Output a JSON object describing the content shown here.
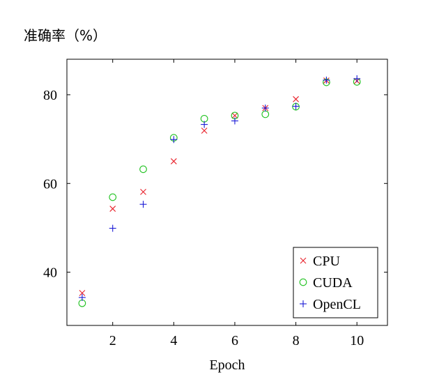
{
  "chart_data": {
    "type": "scatter",
    "ylabel": "准确率（%）",
    "xlabel": "Epoch",
    "xlim": [
      0.5,
      11.0
    ],
    "ylim": [
      28,
      88
    ],
    "xticks": [
      2,
      4,
      6,
      8,
      10
    ],
    "yticks": [
      40,
      60,
      80
    ],
    "grid": false,
    "legend_position": "bottom-right",
    "series": [
      {
        "name": "CPU",
        "marker": "x",
        "color": "#e8202a",
        "x": [
          1,
          2,
          3,
          4,
          5,
          6,
          7,
          8,
          9,
          10
        ],
        "y": [
          35.3,
          54.3,
          58.1,
          65.0,
          71.9,
          75.3,
          77.0,
          79.0,
          83.2,
          83.1
        ]
      },
      {
        "name": "CUDA",
        "marker": "circle",
        "color": "#1fc21f",
        "x": [
          1,
          2,
          3,
          4,
          5,
          6,
          7,
          8,
          9,
          10
        ],
        "y": [
          33.0,
          56.9,
          63.2,
          70.3,
          74.6,
          75.3,
          75.6,
          77.3,
          82.8,
          82.9
        ]
      },
      {
        "name": "OpenCL",
        "marker": "plus",
        "color": "#1a1ad6",
        "x": [
          1,
          2,
          3,
          4,
          5,
          6,
          7,
          8,
          9,
          10
        ],
        "y": [
          34.3,
          49.9,
          55.3,
          69.9,
          73.3,
          74.1,
          77.0,
          77.4,
          83.3,
          83.6
        ]
      }
    ]
  }
}
